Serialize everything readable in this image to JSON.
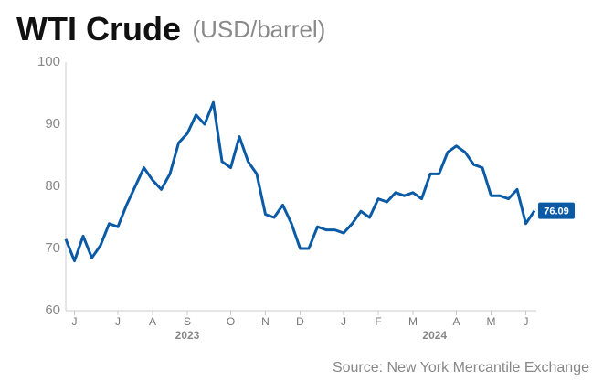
{
  "chart_data": {
    "type": "line",
    "title": "WTI Crude",
    "subtitle": "(USD/barrel)",
    "source": "Source: New York Mercantile Exchange",
    "categories": [
      null,
      "J",
      null,
      null,
      null,
      null,
      "J",
      null,
      null,
      null,
      "A",
      null,
      null,
      null,
      "S",
      null,
      null,
      null,
      null,
      "O",
      null,
      null,
      null,
      "N",
      null,
      null,
      null,
      "D",
      null,
      null,
      null,
      null,
      "J",
      null,
      null,
      null,
      "F",
      null,
      null,
      null,
      "M",
      null,
      null,
      null,
      null,
      "A",
      null,
      null,
      null,
      "M",
      null,
      null,
      null,
      "J",
      null
    ],
    "year_labels": [
      "2023",
      "2024"
    ],
    "values": [
      71.5,
      68,
      72,
      68.5,
      70.5,
      74,
      73.5,
      77,
      80,
      83,
      81,
      79.5,
      82,
      87,
      88.5,
      91.5,
      90,
      93.5,
      84,
      83,
      88,
      84,
      82,
      75.5,
      75,
      77,
      74,
      70,
      70,
      73.5,
      73,
      73,
      72.5,
      74,
      76,
      75,
      78,
      77.5,
      79,
      78.5,
      79,
      78,
      82,
      82,
      85.5,
      86.5,
      85.5,
      83.5,
      83,
      78.5,
      78.5,
      78,
      79.5,
      74,
      76.09
    ],
    "color": "#0b5aa5",
    "ylim": [
      60,
      100
    ],
    "yticks": [
      60,
      70,
      80,
      90,
      100
    ],
    "grid": false
  }
}
